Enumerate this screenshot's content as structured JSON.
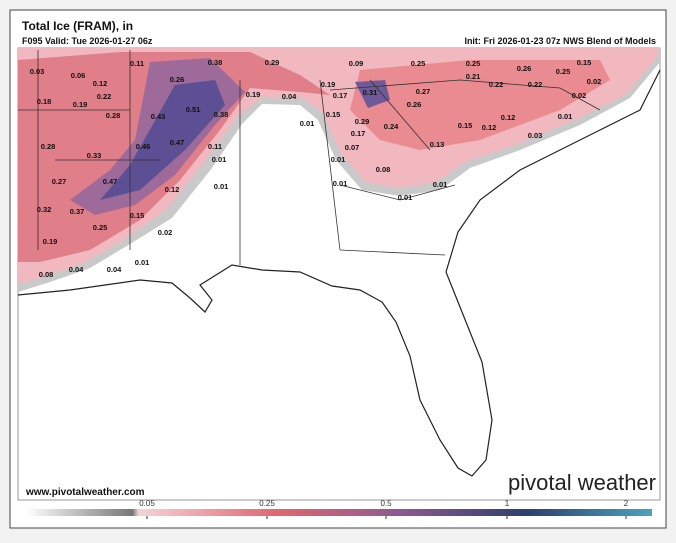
{
  "header": {
    "title": "Total Ice (FRAM), in",
    "valid": "F095 Valid: Tue 2026-01-27 06z",
    "init": "Fri 2026-01-23 07z NWS Blend of Models",
    "init_prefix": "Init:"
  },
  "point_values": [
    0.03,
    0.06,
    0.11,
    0.38,
    0.29,
    0.09,
    0.25,
    0.25,
    0.26,
    0.25,
    0.15,
    0.26,
    0.12,
    0.22,
    0.19,
    0.21,
    0.22,
    0.22,
    0.02,
    0.18,
    0.19,
    0.51,
    0.19,
    0.04,
    0.17,
    0.31,
    0.27,
    0.02,
    0.28,
    0.43,
    0.38,
    0.15,
    0.26,
    0.01,
    0.01,
    0.29,
    0.24,
    0.15,
    0.12,
    0.12,
    0.28,
    0.46,
    0.47,
    0.11,
    0.17,
    0.13,
    0.03,
    0.33,
    0.07,
    0.01,
    0.27,
    0.47,
    0.01,
    0.08,
    0.01,
    0.12,
    0.01,
    0.01,
    0.01,
    0.32,
    0.37,
    0.15,
    0.25,
    0.02,
    0.19,
    0.08,
    0.04,
    0.04,
    0.01
  ],
  "legend": {
    "ticks": [
      0.05,
      0.25,
      0.5,
      1,
      2
    ]
  },
  "footer": {
    "url": "www.pivotalweather.com",
    "brand": "pivotal weather"
  }
}
